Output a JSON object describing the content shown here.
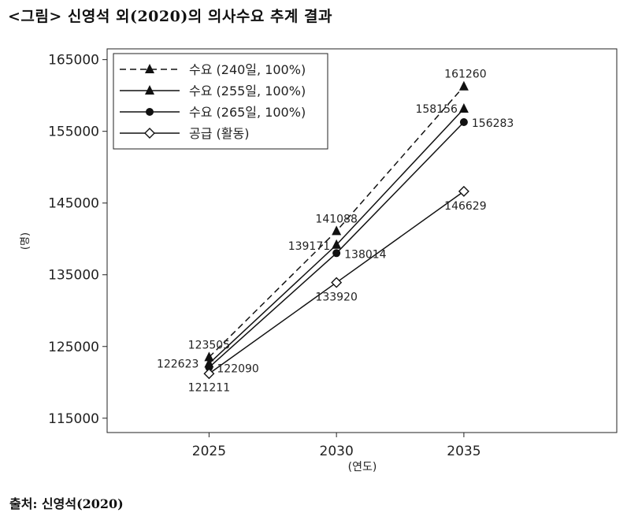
{
  "caption": "<그림> 신영석 외(2020)의 의사수요 추계 결과",
  "source": "출처: 신영석(2020)",
  "chart_data": {
    "type": "line",
    "xlabel": "(연도)",
    "ylabel": "(명)",
    "x": [
      2025,
      2030,
      2035
    ],
    "x_ticks": [
      "2025",
      "2030",
      "2035"
    ],
    "xlim": [
      2021,
      2041
    ],
    "ylim": [
      113000,
      166500
    ],
    "y_ticks": [
      115000,
      125000,
      135000,
      145000,
      155000,
      165000
    ],
    "grid": false,
    "legend_position": "top-left",
    "series": [
      {
        "name": "수요 (240일, 100%)",
        "values": [
          123505,
          141088,
          161260
        ],
        "labels": [
          "123505",
          "141088",
          "161260"
        ],
        "dash": "dashed",
        "marker": "triangle"
      },
      {
        "name": "수요 (255일, 100%)",
        "values": [
          122623,
          139171,
          158156
        ],
        "labels": [
          "122623",
          "139171",
          "158156"
        ],
        "dash": "solid",
        "marker": "triangle"
      },
      {
        "name": "수요 (265일, 100%)",
        "values": [
          122090,
          138014,
          156283
        ],
        "labels": [
          "122090",
          "138014",
          "156283"
        ],
        "dash": "solid",
        "marker": "circle"
      },
      {
        "name": "공급 (활동)",
        "values": [
          121211,
          133920,
          146629
        ],
        "labels": [
          "121211",
          "133920",
          "146629"
        ],
        "dash": "solid",
        "marker": "diamond-open"
      }
    ]
  }
}
